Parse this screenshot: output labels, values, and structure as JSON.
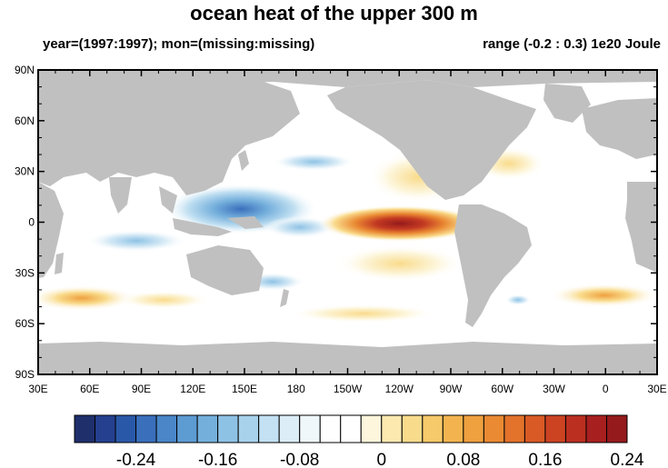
{
  "title": "ocean heat of the upper 300 m",
  "subtitle_left": "year=(1997:1997); mon=(missing:missing)",
  "subtitle_right": "range (-0.2 : 0.3) 1e20 Joule",
  "colors": {
    "land": "#c0c0c0",
    "ocean_zero": "#ffffff",
    "frame": "#000000"
  },
  "lat_labels": [
    "90N",
    "60N",
    "30N",
    "0",
    "30S",
    "60S",
    "90S"
  ],
  "lon_labels": [
    "30E",
    "60E",
    "90E",
    "120E",
    "150E",
    "180",
    "150W",
    "120W",
    "90W",
    "60W",
    "30W",
    "0",
    "30E"
  ],
  "colorbar": {
    "colors": [
      "#1f2f6b",
      "#24408f",
      "#2a58a8",
      "#3a6fbc",
      "#4a86c8",
      "#5d9bd3",
      "#74afdc",
      "#8ec2e5",
      "#a8d2ec",
      "#c3e1f2",
      "#dcedf7",
      "#f0f7fb",
      "#ffffff",
      "#ffffff",
      "#fdf6dc",
      "#fbe9b0",
      "#f9db8c",
      "#f6c96a",
      "#f3b44f",
      "#efa03f",
      "#ea8a33",
      "#e3722b",
      "#d95a25",
      "#cc4322",
      "#ba2f20",
      "#a81f1f",
      "#951a1c"
    ],
    "labels": [
      "-0.24",
      "-0.16",
      "-0.08",
      "0",
      "0.08",
      "0.16",
      "0.24"
    ]
  },
  "map_features": [
    {
      "name": "western-pacific-cool-anomaly",
      "lon": [
        120,
        175
      ],
      "lat": [
        -12,
        20
      ],
      "value": -0.15
    },
    {
      "name": "eastern-pacific-el-nino-warm-anomaly",
      "lon": [
        -170,
        -80
      ],
      "lat": [
        -6,
        6
      ],
      "value": 0.3
    },
    {
      "name": "south-pacific-warm-band",
      "lon": [
        -170,
        -90
      ],
      "lat": [
        -40,
        -22
      ],
      "value": 0.06
    },
    {
      "name": "southern-ocean-warm-band",
      "lon": [
        -20,
        100
      ],
      "lat": [
        -55,
        -30
      ],
      "value": 0.12
    }
  ]
}
